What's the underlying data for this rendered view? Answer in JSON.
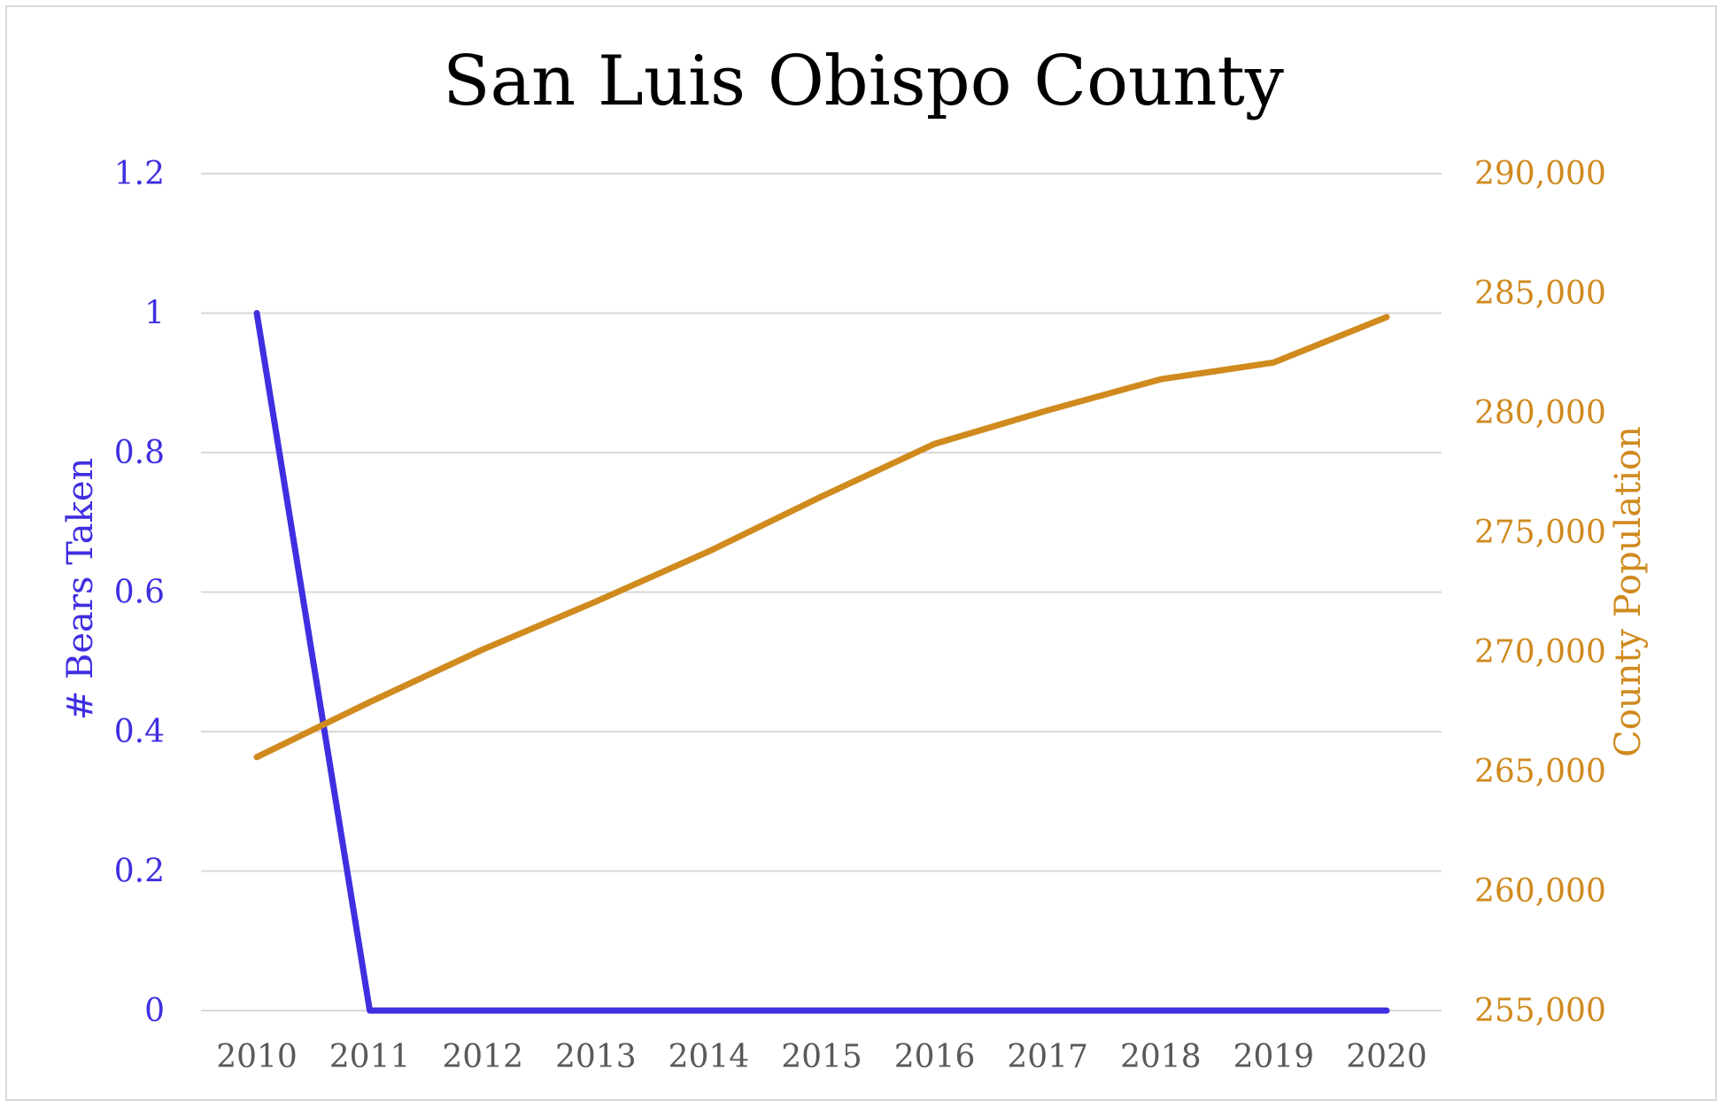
{
  "chart_data": {
    "type": "line",
    "title": "San Luis Obispo County",
    "categories": [
      "2010",
      "2011",
      "2012",
      "2013",
      "2014",
      "2015",
      "2016",
      "2017",
      "2018",
      "2019",
      "2020"
    ],
    "y_left": {
      "label": "# Bears Taken",
      "ylim": [
        0,
        1.2
      ],
      "ticks": [
        "0",
        "0.2",
        "0.4",
        "0.6",
        "0.8",
        "1",
        "1.2"
      ],
      "tick_values": [
        0,
        0.2,
        0.4,
        0.6,
        0.8,
        1,
        1.2
      ]
    },
    "y_right": {
      "label": "County Population",
      "ylim": [
        255000,
        290000
      ],
      "ticks": [
        "255,000",
        "260,000",
        "265,000",
        "270,000",
        "275,000",
        "280,000",
        "285,000",
        "290,000"
      ],
      "tick_values": [
        255000,
        260000,
        265000,
        270000,
        275000,
        280000,
        285000,
        290000
      ]
    },
    "series": [
      {
        "name": "# Bears Taken",
        "axis": "left",
        "color": "#3f2fe0",
        "values": [
          1,
          0,
          0,
          0,
          0,
          0,
          0,
          0,
          0,
          0,
          0
        ]
      },
      {
        "name": "County Population",
        "axis": "right",
        "color": "#d08a1e",
        "values": [
          265600,
          267900,
          270100,
          272100,
          274200,
          276500,
          278700,
          280100,
          281400,
          282100,
          284000
        ]
      }
    ],
    "grid": true,
    "legend": "none"
  }
}
